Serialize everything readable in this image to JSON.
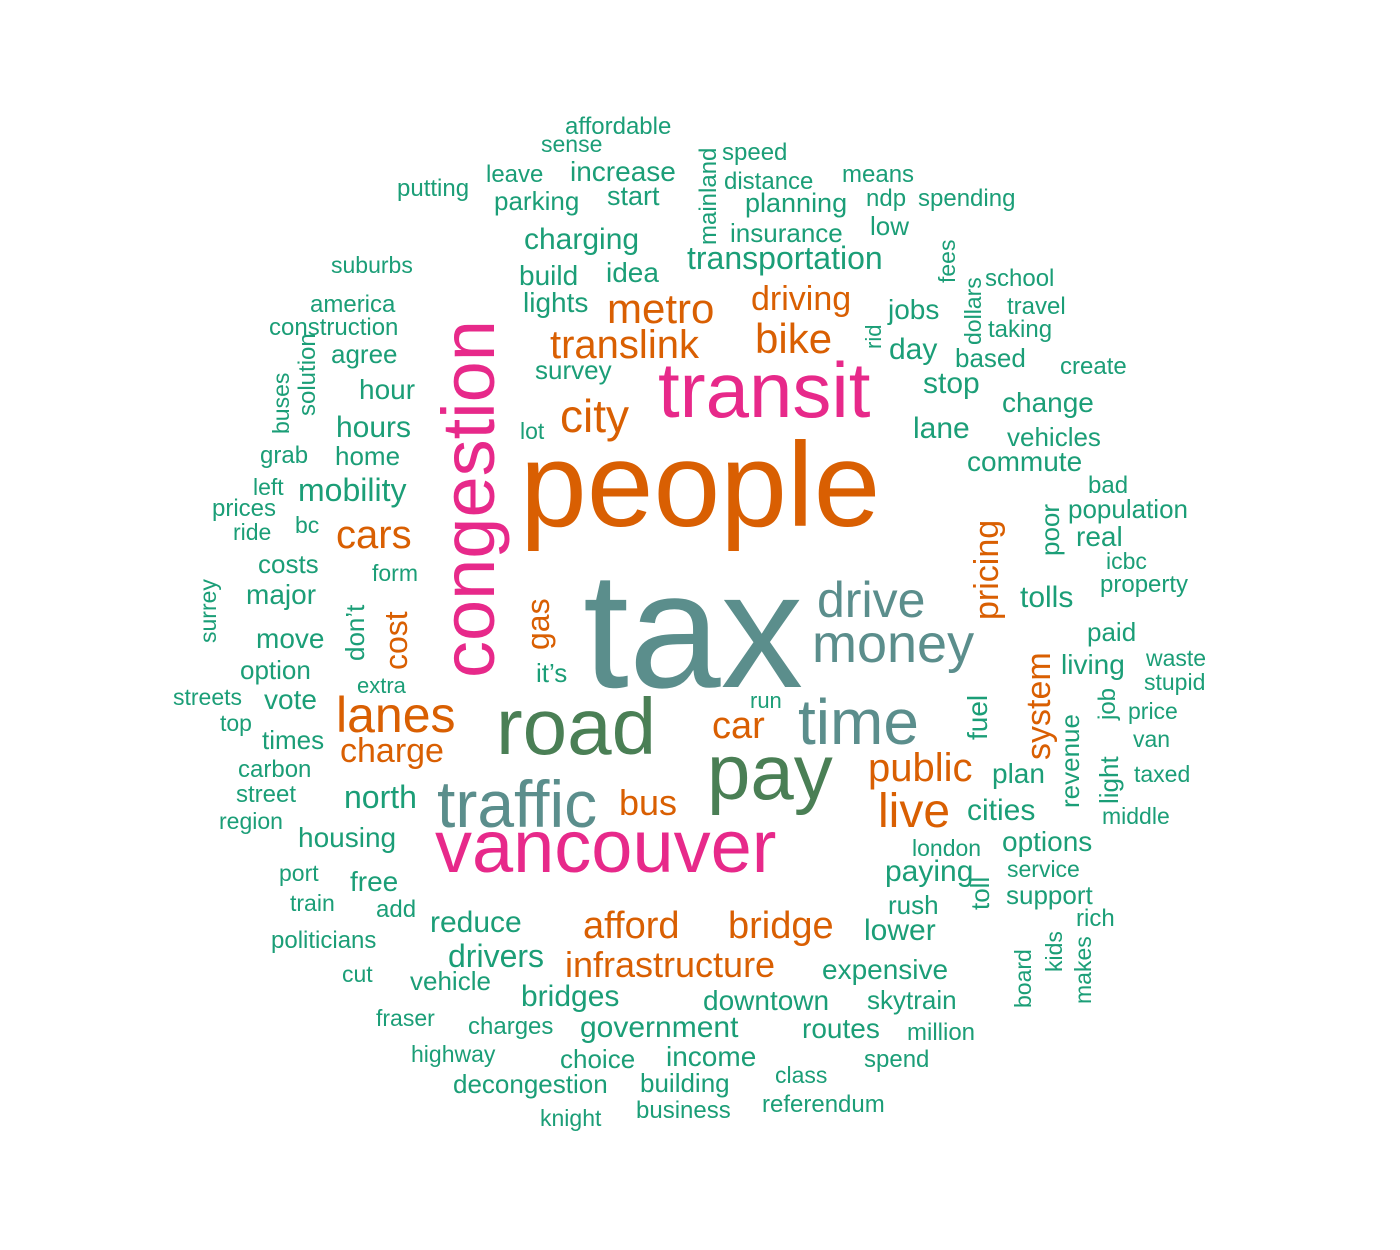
{
  "colors": {
    "green": "#1b9e77",
    "orange": "#d95f02",
    "magenta": "#e7298a",
    "darkgreen": "#4a7f55",
    "slate": "#5b8e8c",
    "background": "#ffffff"
  },
  "words": [
    {
      "text": "tax",
      "color": "slate"
    },
    {
      "text": "people",
      "color": "orange"
    },
    {
      "text": "congestion",
      "color": "magenta"
    },
    {
      "text": "transit",
      "color": "magenta"
    },
    {
      "text": "vancouver",
      "color": "magenta"
    },
    {
      "text": "road",
      "color": "darkgreen"
    },
    {
      "text": "pay",
      "color": "darkgreen"
    },
    {
      "text": "traffic",
      "color": "slate"
    },
    {
      "text": "time",
      "color": "slate"
    },
    {
      "text": "money",
      "color": "slate"
    },
    {
      "text": "drive",
      "color": "slate"
    },
    {
      "text": "city",
      "color": "orange"
    },
    {
      "text": "lanes",
      "color": "orange"
    },
    {
      "text": "translink",
      "color": "orange"
    },
    {
      "text": "metro",
      "color": "orange"
    },
    {
      "text": "bike",
      "color": "orange"
    },
    {
      "text": "cars",
      "color": "orange"
    },
    {
      "text": "pricing",
      "color": "orange"
    },
    {
      "text": "afford",
      "color": "orange"
    },
    {
      "text": "bridge",
      "color": "orange"
    },
    {
      "text": "infrastructure",
      "color": "orange"
    },
    {
      "text": "live",
      "color": "orange"
    },
    {
      "text": "public",
      "color": "orange"
    },
    {
      "text": "car",
      "color": "orange"
    },
    {
      "text": "charge",
      "color": "orange"
    },
    {
      "text": "system",
      "color": "orange"
    },
    {
      "text": "gas",
      "color": "orange"
    },
    {
      "text": "cost",
      "color": "orange"
    },
    {
      "text": "driving",
      "color": "orange"
    },
    {
      "text": "bus",
      "color": "orange"
    },
    {
      "text": "affordable",
      "color": "green"
    },
    {
      "text": "sense",
      "color": "green"
    },
    {
      "text": "mainland",
      "color": "green"
    },
    {
      "text": "speed",
      "color": "green"
    },
    {
      "text": "leave",
      "color": "green"
    },
    {
      "text": "increase",
      "color": "green"
    },
    {
      "text": "distance",
      "color": "green"
    },
    {
      "text": "means",
      "color": "green"
    },
    {
      "text": "putting",
      "color": "green"
    },
    {
      "text": "parking",
      "color": "green"
    },
    {
      "text": "start",
      "color": "green"
    },
    {
      "text": "planning",
      "color": "green"
    },
    {
      "text": "ndp",
      "color": "green"
    },
    {
      "text": "spending",
      "color": "green"
    },
    {
      "text": "insurance",
      "color": "green"
    },
    {
      "text": "low",
      "color": "green"
    },
    {
      "text": "charging",
      "color": "green"
    },
    {
      "text": "fees",
      "color": "green"
    },
    {
      "text": "transportation",
      "color": "green"
    },
    {
      "text": "suburbs",
      "color": "green"
    },
    {
      "text": "build",
      "color": "green"
    },
    {
      "text": "idea",
      "color": "green"
    },
    {
      "text": "dollars",
      "color": "green"
    },
    {
      "text": "school",
      "color": "green"
    },
    {
      "text": "lights",
      "color": "green"
    },
    {
      "text": "america",
      "color": "green"
    },
    {
      "text": "jobs",
      "color": "green"
    },
    {
      "text": "travel",
      "color": "green"
    },
    {
      "text": "construction",
      "color": "green"
    },
    {
      "text": "taking",
      "color": "green"
    },
    {
      "text": "rid",
      "color": "green"
    },
    {
      "text": "agree",
      "color": "green"
    },
    {
      "text": "day",
      "color": "green"
    },
    {
      "text": "based",
      "color": "green"
    },
    {
      "text": "solution",
      "color": "green"
    },
    {
      "text": "survey",
      "color": "green"
    },
    {
      "text": "create",
      "color": "green"
    },
    {
      "text": "buses",
      "color": "green"
    },
    {
      "text": "hour",
      "color": "green"
    },
    {
      "text": "stop",
      "color": "green"
    },
    {
      "text": "change",
      "color": "green"
    },
    {
      "text": "lot",
      "color": "green"
    },
    {
      "text": "hours",
      "color": "green"
    },
    {
      "text": "lane",
      "color": "green"
    },
    {
      "text": "vehicles",
      "color": "green"
    },
    {
      "text": "grab",
      "color": "green"
    },
    {
      "text": "home",
      "color": "green"
    },
    {
      "text": "commute",
      "color": "green"
    },
    {
      "text": "left",
      "color": "green"
    },
    {
      "text": "mobility",
      "color": "green"
    },
    {
      "text": "bad",
      "color": "green"
    },
    {
      "text": "prices",
      "color": "green"
    },
    {
      "text": "poor",
      "color": "green"
    },
    {
      "text": "population",
      "color": "green"
    },
    {
      "text": "ride",
      "color": "green"
    },
    {
      "text": "bc",
      "color": "green"
    },
    {
      "text": "real",
      "color": "green"
    },
    {
      "text": "icbc",
      "color": "green"
    },
    {
      "text": "costs",
      "color": "green"
    },
    {
      "text": "form",
      "color": "green"
    },
    {
      "text": "property",
      "color": "green"
    },
    {
      "text": "surrey",
      "color": "green"
    },
    {
      "text": "major",
      "color": "green"
    },
    {
      "text": "don’t",
      "color": "green"
    },
    {
      "text": "tolls",
      "color": "green"
    },
    {
      "text": "paid",
      "color": "green"
    },
    {
      "text": "move",
      "color": "green"
    },
    {
      "text": "living",
      "color": "green"
    },
    {
      "text": "waste",
      "color": "green"
    },
    {
      "text": "option",
      "color": "green"
    },
    {
      "text": "it’s",
      "color": "green"
    },
    {
      "text": "stupid",
      "color": "green"
    },
    {
      "text": "extra",
      "color": "green"
    },
    {
      "text": "streets",
      "color": "green"
    },
    {
      "text": "vote",
      "color": "green"
    },
    {
      "text": "run",
      "color": "green"
    },
    {
      "text": "fuel",
      "color": "green"
    },
    {
      "text": "revenue",
      "color": "green"
    },
    {
      "text": "job",
      "color": "green"
    },
    {
      "text": "top",
      "color": "green"
    },
    {
      "text": "price",
      "color": "green"
    },
    {
      "text": "times",
      "color": "green"
    },
    {
      "text": "van",
      "color": "green"
    },
    {
      "text": "light",
      "color": "green"
    },
    {
      "text": "carbon",
      "color": "green"
    },
    {
      "text": "plan",
      "color": "green"
    },
    {
      "text": "taxed",
      "color": "green"
    },
    {
      "text": "street",
      "color": "green"
    },
    {
      "text": "north",
      "color": "green"
    },
    {
      "text": "region",
      "color": "green"
    },
    {
      "text": "cities",
      "color": "green"
    },
    {
      "text": "middle",
      "color": "green"
    },
    {
      "text": "housing",
      "color": "green"
    },
    {
      "text": "options",
      "color": "green"
    },
    {
      "text": "london",
      "color": "green"
    },
    {
      "text": "port",
      "color": "green"
    },
    {
      "text": "free",
      "color": "green"
    },
    {
      "text": "paying",
      "color": "green"
    },
    {
      "text": "service",
      "color": "green"
    },
    {
      "text": "train",
      "color": "green"
    },
    {
      "text": "add",
      "color": "green"
    },
    {
      "text": "support",
      "color": "green"
    },
    {
      "text": "rush",
      "color": "green"
    },
    {
      "text": "rich",
      "color": "green"
    },
    {
      "text": "reduce",
      "color": "green"
    },
    {
      "text": "toll",
      "color": "green"
    },
    {
      "text": "politicians",
      "color": "green"
    },
    {
      "text": "lower",
      "color": "green"
    },
    {
      "text": "kids",
      "color": "green"
    },
    {
      "text": "drivers",
      "color": "green"
    },
    {
      "text": "makes",
      "color": "green"
    },
    {
      "text": "cut",
      "color": "green"
    },
    {
      "text": "board",
      "color": "green"
    },
    {
      "text": "vehicle",
      "color": "green"
    },
    {
      "text": "expensive",
      "color": "green"
    },
    {
      "text": "bridges",
      "color": "green"
    },
    {
      "text": "skytrain",
      "color": "green"
    },
    {
      "text": "downtown",
      "color": "green"
    },
    {
      "text": "fraser",
      "color": "green"
    },
    {
      "text": "charges",
      "color": "green"
    },
    {
      "text": "government",
      "color": "green"
    },
    {
      "text": "routes",
      "color": "green"
    },
    {
      "text": "million",
      "color": "green"
    },
    {
      "text": "highway",
      "color": "green"
    },
    {
      "text": "choice",
      "color": "green"
    },
    {
      "text": "income",
      "color": "green"
    },
    {
      "text": "spend",
      "color": "green"
    },
    {
      "text": "class",
      "color": "green"
    },
    {
      "text": "decongestion",
      "color": "green"
    },
    {
      "text": "building",
      "color": "green"
    },
    {
      "text": "business",
      "color": "green"
    },
    {
      "text": "referendum",
      "color": "green"
    },
    {
      "text": "knight",
      "color": "green"
    }
  ]
}
